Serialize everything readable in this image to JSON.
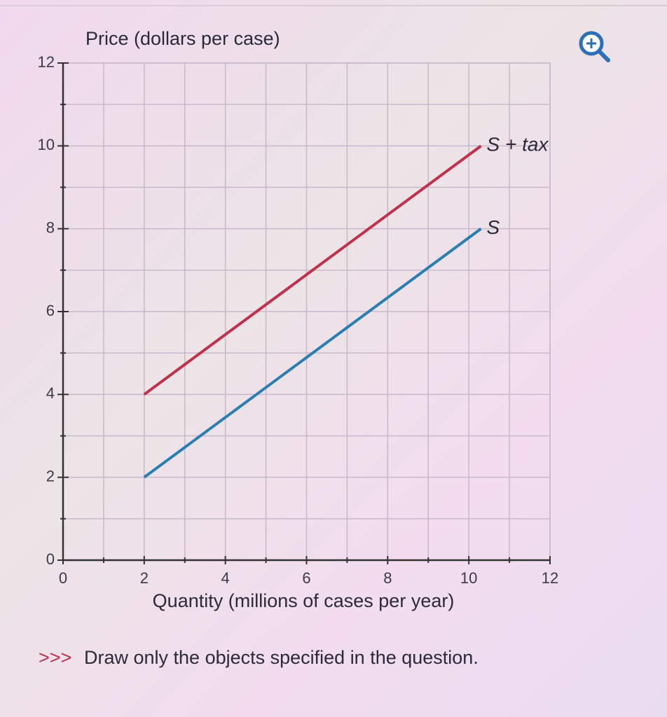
{
  "chart_data": {
    "type": "line",
    "y_axis_label": "Price (dollars per case)",
    "x_axis_label": "Quantity (millions of cases per year)",
    "x": [
      2,
      10.3
    ],
    "series": [
      {
        "name": "S + tax",
        "color": "#c2314b",
        "values": [
          4,
          10
        ]
      },
      {
        "name": "S",
        "color": "#2a7fb2",
        "values": [
          2,
          8
        ]
      }
    ],
    "xlim": [
      0,
      12
    ],
    "xticks": [
      0,
      2,
      4,
      6,
      8,
      10,
      12
    ],
    "ylim": [
      0,
      12
    ],
    "yticks": [
      0,
      2,
      4,
      6,
      8,
      10,
      12
    ],
    "grid": true
  },
  "footer": {
    "marker": ">>>",
    "instruction": "Draw only the objects specified in the question."
  }
}
